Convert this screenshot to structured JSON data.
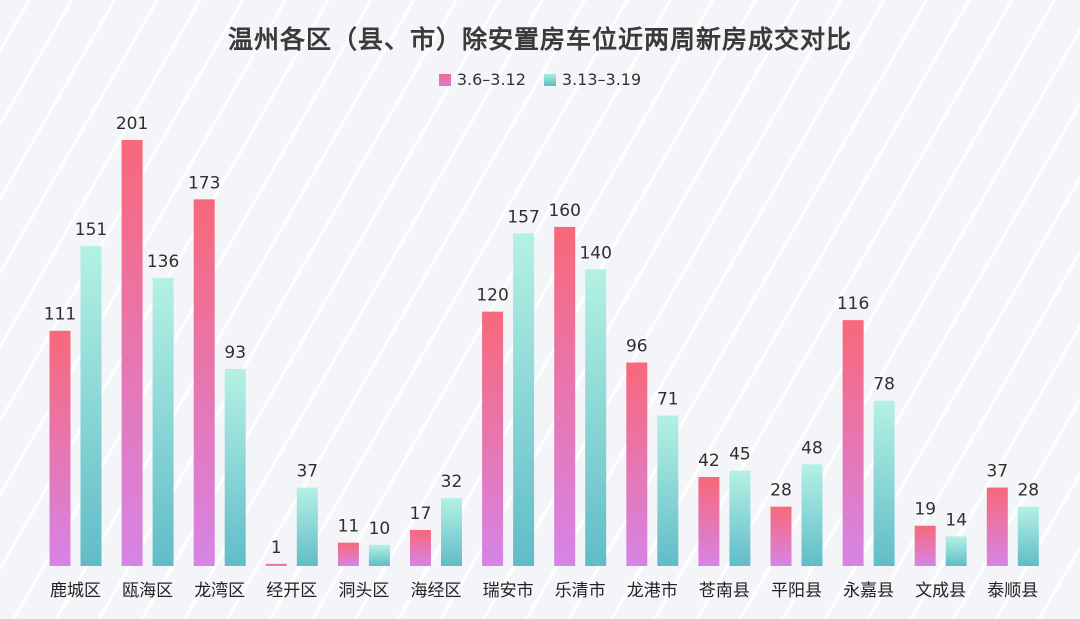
{
  "chart_data": {
    "type": "bar",
    "title": "温州各区（县、市）除安置房车位近两周新房成交对比",
    "categories": [
      "鹿城区",
      "瓯海区",
      "龙湾区",
      "经开区",
      "洞头区",
      "海经区",
      "瑞安市",
      "乐清市",
      "龙港市",
      "苍南县",
      "平阳县",
      "永嘉县",
      "文成县",
      "泰顺县"
    ],
    "series": [
      {
        "name": "3.6–3.12",
        "values": [
          111,
          201,
          173,
          1,
          11,
          17,
          120,
          160,
          96,
          42,
          28,
          116,
          19,
          37
        ],
        "color_top": "#f8687a",
        "color_bottom": "#d684e6"
      },
      {
        "name": "3.13–3.19",
        "values": [
          151,
          136,
          93,
          37,
          10,
          32,
          157,
          140,
          71,
          45,
          48,
          78,
          14,
          28
        ],
        "color_top": "#b4f1e4",
        "color_bottom": "#61bcc8"
      }
    ],
    "ylim": [
      0,
      201
    ],
    "xlabel": "",
    "ylabel": "",
    "grid": false,
    "legend_position": "top-center"
  }
}
